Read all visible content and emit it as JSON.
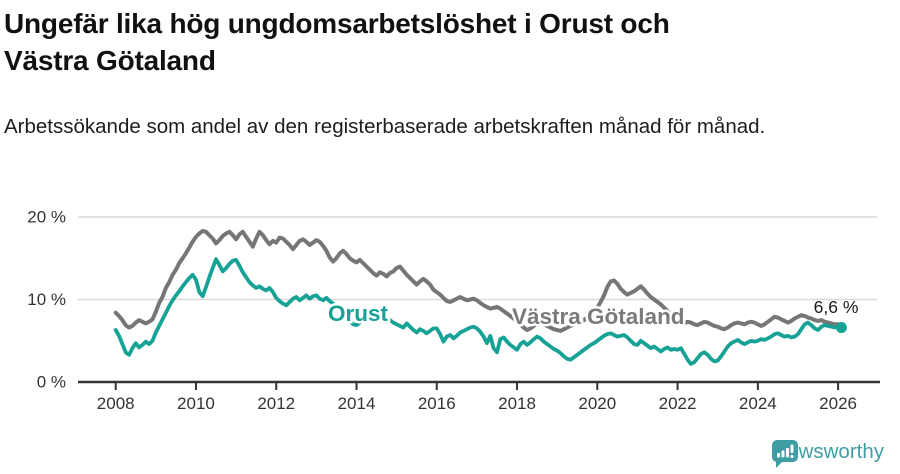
{
  "header": {
    "title": "Ungefär lika hög ungdomsarbetslöshet i Orust och Västra Götaland",
    "subtitle": "Arbetssökande som andel av den registerbaserade arbetskraften månad för månad."
  },
  "chart_data": {
    "type": "line",
    "title": "Ungefär lika hög ungdomsarbetslöshet i Orust och Västra Götaland",
    "subtitle": "Arbetssökande som andel av den registerbaserade arbetskraften månad för månad.",
    "x_frequency": "monthly",
    "x_start": "2008-01",
    "x_end": "2026-02",
    "x_tick_labels": [
      "2008",
      "2010",
      "2012",
      "2014",
      "2016",
      "2018",
      "2020",
      "2022",
      "2024",
      "2026"
    ],
    "y_tick_labels": [
      "0 %",
      "10 %",
      "20 %"
    ],
    "ylim": [
      0,
      20
    ],
    "grid": "horizontal",
    "legend_position": "inline-labels-on-lines",
    "end_annotation": {
      "text": "6,6 %",
      "series": "Orust",
      "value": 6.6
    },
    "series": [
      {
        "name": "Västra Götaland",
        "color": "#767676",
        "values": [
          8.4,
          8.0,
          7.5,
          6.9,
          6.6,
          6.8,
          7.2,
          7.5,
          7.3,
          7.1,
          7.3,
          7.6,
          8.5,
          9.6,
          10.3,
          11.4,
          12.1,
          13.0,
          13.6,
          14.4,
          15.0,
          15.6,
          16.3,
          17.0,
          17.6,
          18.0,
          18.3,
          18.2,
          17.8,
          17.4,
          16.8,
          17.2,
          17.7,
          18.0,
          18.2,
          17.8,
          17.3,
          17.9,
          18.2,
          17.6,
          17.0,
          16.4,
          17.4,
          18.2,
          17.8,
          17.2,
          16.7,
          17.1,
          16.9,
          17.5,
          17.4,
          17.0,
          16.6,
          16.1,
          16.6,
          17.1,
          17.3,
          17.0,
          16.6,
          16.9,
          17.2,
          17.0,
          16.5,
          15.9,
          15.1,
          14.6,
          15.0,
          15.6,
          15.9,
          15.5,
          15.0,
          14.7,
          14.5,
          14.8,
          14.4,
          14.0,
          13.6,
          13.2,
          12.9,
          13.3,
          13.1,
          12.8,
          13.2,
          13.4,
          13.8,
          14.0,
          13.5,
          13.0,
          12.6,
          12.2,
          11.8,
          12.2,
          12.5,
          12.2,
          11.8,
          11.2,
          10.9,
          10.6,
          10.2,
          9.8,
          9.7,
          9.9,
          10.1,
          10.3,
          10.1,
          9.9,
          10.0,
          10.1,
          9.9,
          9.6,
          9.3,
          9.1,
          8.9,
          9.0,
          9.1,
          8.9,
          8.6,
          8.3,
          8.0,
          7.7,
          7.4,
          7.0,
          6.6,
          6.3,
          6.5,
          6.8,
          7.1,
          7.2,
          7.0,
          6.8,
          6.6,
          6.4,
          6.3,
          6.2,
          6.4,
          6.6,
          6.8,
          7.0,
          7.1,
          7.3,
          7.5,
          7.8,
          8.1,
          8.5,
          9.0,
          9.7,
          10.5,
          11.5,
          12.2,
          12.3,
          11.9,
          11.3,
          10.9,
          10.6,
          10.8,
          11.0,
          11.3,
          11.6,
          11.2,
          10.7,
          10.3,
          10.0,
          9.7,
          9.4,
          9.0,
          8.6,
          8.2,
          7.8,
          7.4,
          7.2,
          7.1,
          7.3,
          7.2,
          7.0,
          6.9,
          7.1,
          7.3,
          7.2,
          7.0,
          6.8,
          6.7,
          6.5,
          6.4,
          6.6,
          6.9,
          7.1,
          7.2,
          7.1,
          7.0,
          7.2,
          7.3,
          7.2,
          7.0,
          6.8,
          7.0,
          7.3,
          7.6,
          7.9,
          7.8,
          7.6,
          7.4,
          7.2,
          7.4,
          7.7,
          7.9,
          8.1,
          8.0,
          7.8,
          7.7,
          7.5,
          7.4,
          7.5,
          7.3,
          7.2,
          7.1,
          7.0,
          7.0,
          6.9
        ]
      },
      {
        "name": "Orust",
        "color": "#17a296",
        "values": [
          6.3,
          5.6,
          4.6,
          3.6,
          3.3,
          4.1,
          4.7,
          4.2,
          4.5,
          4.9,
          4.6,
          5.0,
          6.0,
          6.8,
          7.6,
          8.4,
          9.2,
          9.9,
          10.5,
          11.0,
          11.6,
          12.1,
          12.6,
          13.0,
          12.4,
          10.9,
          10.4,
          11.5,
          12.7,
          13.8,
          14.9,
          14.2,
          13.4,
          13.8,
          14.3,
          14.7,
          14.8,
          14.1,
          13.3,
          12.7,
          12.1,
          11.7,
          11.4,
          11.6,
          11.3,
          11.1,
          11.4,
          10.9,
          10.2,
          9.8,
          9.5,
          9.3,
          9.7,
          10.1,
          10.3,
          9.9,
          10.2,
          10.5,
          10.1,
          10.4,
          10.5,
          10.1,
          9.9,
          10.2,
          9.8,
          9.5,
          9.1,
          8.8,
          8.4,
          7.9,
          7.4,
          7.0,
          6.9,
          7.2,
          7.5,
          7.9,
          8.1,
          7.8,
          7.5,
          7.8,
          7.6,
          7.3,
          7.5,
          7.2,
          7.0,
          6.8,
          6.6,
          7.1,
          6.7,
          6.3,
          6.0,
          6.4,
          6.2,
          5.9,
          6.2,
          6.5,
          6.5,
          5.8,
          4.9,
          5.5,
          5.7,
          5.3,
          5.6,
          6.0,
          6.2,
          6.4,
          6.6,
          6.7,
          6.5,
          6.1,
          5.5,
          4.7,
          5.6,
          4.1,
          3.6,
          5.2,
          5.4,
          4.9,
          4.5,
          4.2,
          3.9,
          4.6,
          4.9,
          4.5,
          4.8,
          5.2,
          5.5,
          5.3,
          4.9,
          4.6,
          4.3,
          4.0,
          3.8,
          3.5,
          3.1,
          2.8,
          2.7,
          3.0,
          3.3,
          3.6,
          3.9,
          4.2,
          4.5,
          4.7,
          5.0,
          5.3,
          5.6,
          5.8,
          5.9,
          5.7,
          5.5,
          5.6,
          5.7,
          5.4,
          5.0,
          4.6,
          4.5,
          5.0,
          4.7,
          4.4,
          4.1,
          4.3,
          4.0,
          3.7,
          4.0,
          4.2,
          3.9,
          4.0,
          3.9,
          4.1,
          3.4,
          2.7,
          2.2,
          2.4,
          2.9,
          3.4,
          3.6,
          3.3,
          2.8,
          2.5,
          2.6,
          3.1,
          3.7,
          4.3,
          4.7,
          4.9,
          5.1,
          4.8,
          4.6,
          4.8,
          5.0,
          4.9,
          5.0,
          5.2,
          5.1,
          5.3,
          5.5,
          5.8,
          5.9,
          5.7,
          5.5,
          5.6,
          5.4,
          5.5,
          5.8,
          6.4,
          7.0,
          7.2,
          6.9,
          6.5,
          6.3,
          6.7,
          6.9,
          6.8,
          6.7,
          6.6,
          6.7,
          6.6
        ]
      }
    ],
    "series_inline_labels": [
      {
        "text": "Orust",
        "color": "#17a296"
      },
      {
        "text": "Västra Götaland",
        "color": "#7a7a7a"
      }
    ]
  },
  "footer": {
    "brand": "Newsworthy",
    "brand_color": "#3f9ea3",
    "logo_icon": "bar-chart-speech-bubble-icon"
  },
  "colors": {
    "background": "#ffffff",
    "title_text": "#111111",
    "axis_text": "#333333",
    "gridline": "#d9d9d9",
    "axis_line": "#333333",
    "orust_line": "#17a296",
    "vastra_gotaland_line": "#767676",
    "annotation_text": "#1a1a1a"
  }
}
